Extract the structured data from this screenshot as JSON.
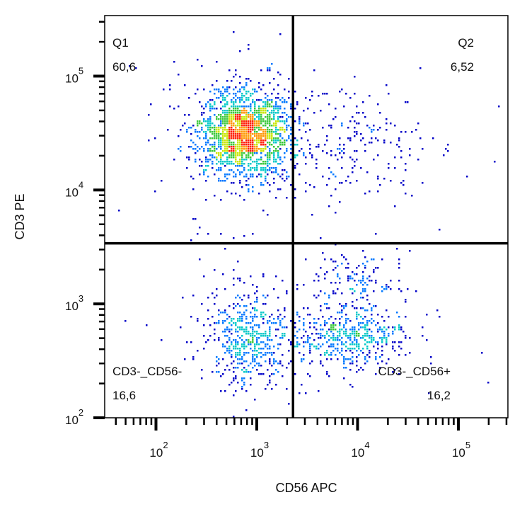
{
  "chart_data": {
    "type": "scatter",
    "subtype": "flow-cytometry density dot plot",
    "xlabel": "CD56 APC",
    "ylabel": "CD3 PE",
    "x_scale": "log",
    "y_scale": "log",
    "xlim": [
      31,
      310000
    ],
    "ylim": [
      100,
      340000
    ],
    "x_ticks": [
      {
        "exp": "2",
        "value": 100
      },
      {
        "exp": "3",
        "value": 1000
      },
      {
        "exp": "4",
        "value": 10000
      },
      {
        "exp": "5",
        "value": 100000
      }
    ],
    "y_ticks": [
      {
        "exp": "2",
        "value": 100
      },
      {
        "exp": "3",
        "value": 1000
      },
      {
        "exp": "4",
        "value": 10000
      },
      {
        "exp": "5",
        "value": 100000
      }
    ],
    "tick_base": "10",
    "gate": {
      "x": 2290,
      "y": 3400
    },
    "quadrants": [
      {
        "name": "Q1",
        "percent": "60,6",
        "position": "top-left"
      },
      {
        "name": "Q2",
        "percent": "6,52",
        "position": "top-right"
      },
      {
        "name": "CD3-_CD56-",
        "percent": "16,6",
        "position": "bottom-left"
      },
      {
        "name": "CD3-_CD56+",
        "percent": "16,2",
        "position": "bottom-right"
      }
    ],
    "populations": [
      {
        "x_center": 750,
        "y_center": 31000,
        "x_spread_decades": 0.22,
        "y_spread_decades": 0.19,
        "events": 1900
      },
      {
        "x_center": 9000,
        "y_center": 26000,
        "x_spread_decades": 0.38,
        "y_spread_decades": 0.25,
        "events": 220
      },
      {
        "x_center": 800,
        "y_center": 510,
        "x_spread_decades": 0.2,
        "y_spread_decades": 0.2,
        "events": 550
      },
      {
        "x_center": 8000,
        "y_center": 520,
        "x_spread_decades": 0.3,
        "y_spread_decades": 0.13,
        "events": 520
      },
      {
        "x_center": 9000,
        "y_center": 1700,
        "x_spread_decades": 0.22,
        "y_spread_decades": 0.12,
        "events": 130
      }
    ],
    "colormap": [
      "#0000c8",
      "#0078ff",
      "#00c8c8",
      "#3cc83c",
      "#c8e600",
      "#ff9600",
      "#ff1e00"
    ],
    "grid": false,
    "legend": "none"
  }
}
